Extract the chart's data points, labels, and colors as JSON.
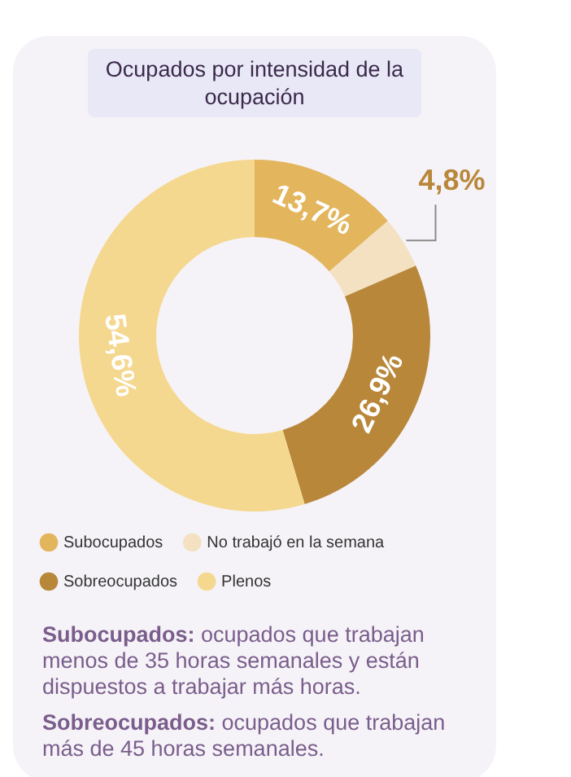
{
  "chart_data": {
    "type": "donut",
    "title": "Ocupados por intensidad de la ocupación",
    "categories": [
      "Subocupados",
      "No trabajó en la semana",
      "Sobreocupados",
      "Plenos"
    ],
    "values": [
      13.7,
      4.8,
      26.9,
      54.6
    ],
    "value_labels": [
      "13,7%",
      "4,8%",
      "26,9%",
      "54,6%"
    ],
    "colors": [
      "#e3b55c",
      "#f3e1c1",
      "#b8873a",
      "#f5d88f"
    ],
    "legend": "bottom",
    "annotations": [
      "Subocupados: ocupados que trabajan menos de 35 horas semanales y están dispuestos a trabajar más horas.",
      "Sobreocupados: ocupados que trabajan más de 45 horas semanales."
    ]
  }
}
